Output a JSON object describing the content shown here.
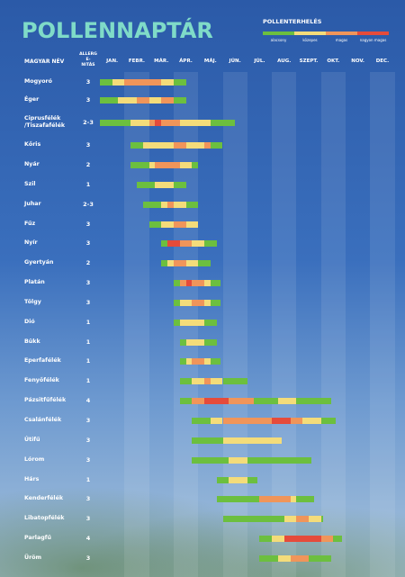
{
  "header": {
    "title": "POLLENNAPTÁR",
    "legend_title": "POLLENTERHELÉS",
    "levels": [
      {
        "label": "alacsony",
        "color": "#6cbf3f"
      },
      {
        "label": "közepes",
        "color": "#f4dc7a"
      },
      {
        "label": "magas",
        "color": "#f0955a"
      },
      {
        "label": "nagyon magas",
        "color": "#e54b3b"
      }
    ]
  },
  "columns": {
    "name": "MAGYAR NÉV",
    "allergenicity": "ALLERGE-NITÁS",
    "months": [
      "JAN.",
      "FEBR.",
      "MÁR.",
      "ÁPR.",
      "MÁJ.",
      "JÚN.",
      "JÚL.",
      "AUG.",
      "SZEPT.",
      "OKT.",
      "NOV.",
      "DEC."
    ]
  },
  "rows": [
    {
      "name": "Mogyoró",
      "allergenicity": 3,
      "segments": [
        [
          0,
          0.5,
          0
        ],
        [
          0.5,
          1,
          1
        ],
        [
          1,
          2.5,
          2
        ],
        [
          2.5,
          3,
          1
        ],
        [
          3,
          3.5,
          0
        ]
      ]
    },
    {
      "name": "Éger",
      "allergenicity": 3,
      "segments": [
        [
          0,
          0.75,
          0
        ],
        [
          0.75,
          1.5,
          1
        ],
        [
          1.5,
          2,
          2
        ],
        [
          2,
          2.5,
          1
        ],
        [
          2.5,
          3,
          2
        ],
        [
          3,
          3.5,
          0
        ]
      ]
    },
    {
      "name": "Ciprusfélék /Tiszafafélék",
      "allergenicity": "2-3",
      "segments": [
        [
          0,
          1.25,
          0
        ],
        [
          1.25,
          2,
          1
        ],
        [
          2,
          2.25,
          2
        ],
        [
          2.25,
          2.5,
          3
        ],
        [
          2.5,
          3.25,
          2
        ],
        [
          3.25,
          4.5,
          1
        ],
        [
          4.5,
          5.5,
          0
        ]
      ]
    },
    {
      "name": "Kőris",
      "allergenicity": 3,
      "segments": [
        [
          1.25,
          1.75,
          0
        ],
        [
          1.75,
          3,
          1
        ],
        [
          3,
          3.5,
          2
        ],
        [
          3.5,
          4.25,
          1
        ],
        [
          4.25,
          4.5,
          2
        ],
        [
          4.5,
          5,
          0
        ]
      ]
    },
    {
      "name": "Nyár",
      "allergenicity": 2,
      "segments": [
        [
          1.25,
          2,
          0
        ],
        [
          2,
          2.25,
          1
        ],
        [
          2.25,
          3.25,
          2
        ],
        [
          3.25,
          3.75,
          1
        ],
        [
          3.75,
          4,
          0
        ]
      ]
    },
    {
      "name": "Szil",
      "allergenicity": 1,
      "segments": [
        [
          1.5,
          2.25,
          0
        ],
        [
          2.25,
          3,
          1
        ],
        [
          3,
          3.5,
          0
        ]
      ]
    },
    {
      "name": "Juhar",
      "allergenicity": "2-3",
      "segments": [
        [
          1.75,
          2.5,
          0
        ],
        [
          2.5,
          2.75,
          1
        ],
        [
          2.75,
          3,
          2
        ],
        [
          3,
          3.5,
          1
        ],
        [
          3.5,
          4,
          0
        ]
      ]
    },
    {
      "name": "Fűz",
      "allergenicity": 3,
      "segments": [
        [
          2,
          2.5,
          0
        ],
        [
          2.5,
          3,
          1
        ],
        [
          3,
          3.5,
          2
        ],
        [
          3.5,
          4,
          1
        ]
      ]
    },
    {
      "name": "Nyír",
      "allergenicity": 3,
      "segments": [
        [
          2.5,
          2.75,
          0
        ],
        [
          2.75,
          3.25,
          3
        ],
        [
          3.25,
          3.75,
          2
        ],
        [
          3.75,
          4.25,
          1
        ],
        [
          4.25,
          4.75,
          0
        ]
      ]
    },
    {
      "name": "Gyertyán",
      "allergenicity": 2,
      "segments": [
        [
          2.5,
          2.75,
          0
        ],
        [
          2.75,
          3,
          1
        ],
        [
          3,
          3.5,
          2
        ],
        [
          3.5,
          4,
          1
        ],
        [
          4,
          4.5,
          0
        ]
      ]
    },
    {
      "name": "Platán",
      "allergenicity": 3,
      "segments": [
        [
          3,
          3.25,
          0
        ],
        [
          3.25,
          3.5,
          2
        ],
        [
          3.5,
          3.75,
          3
        ],
        [
          3.75,
          4.25,
          2
        ],
        [
          4.25,
          4.5,
          1
        ],
        [
          4.5,
          4.9,
          0
        ]
      ]
    },
    {
      "name": "Tölgy",
      "allergenicity": 3,
      "segments": [
        [
          3,
          3.25,
          0
        ],
        [
          3.25,
          3.75,
          1
        ],
        [
          3.75,
          4.25,
          2
        ],
        [
          4.25,
          4.5,
          1
        ],
        [
          4.5,
          4.9,
          0
        ]
      ]
    },
    {
      "name": "Dió",
      "allergenicity": 1,
      "segments": [
        [
          3,
          3.25,
          0
        ],
        [
          3.25,
          4.25,
          1
        ],
        [
          4.25,
          4.75,
          0
        ]
      ]
    },
    {
      "name": "Bükk",
      "allergenicity": 1,
      "segments": [
        [
          3.25,
          3.5,
          0
        ],
        [
          3.5,
          4.25,
          1
        ],
        [
          4.25,
          4.75,
          0
        ]
      ]
    },
    {
      "name": "Eperfafélék",
      "allergenicity": 1,
      "segments": [
        [
          3.25,
          3.5,
          0
        ],
        [
          3.5,
          3.75,
          1
        ],
        [
          3.75,
          4.25,
          2
        ],
        [
          4.25,
          4.5,
          1
        ],
        [
          4.5,
          4.9,
          0
        ]
      ]
    },
    {
      "name": "Fenyőfélék",
      "allergenicity": 1,
      "segments": [
        [
          3.25,
          3.75,
          0
        ],
        [
          3.75,
          4.25,
          1
        ],
        [
          4.25,
          4.5,
          2
        ],
        [
          4.5,
          5,
          1
        ],
        [
          5,
          6,
          0
        ]
      ]
    },
    {
      "name": "Pázsitfűfélék",
      "allergenicity": 4,
      "segments": [
        [
          3.25,
          3.75,
          0
        ],
        [
          3.75,
          4.25,
          2
        ],
        [
          4.25,
          5.25,
          3
        ],
        [
          5.25,
          6.25,
          2
        ],
        [
          6.25,
          7.25,
          0
        ],
        [
          7.25,
          8,
          1
        ],
        [
          8,
          9.4,
          0
        ]
      ]
    },
    {
      "name": "Csalánfélék",
      "allergenicity": 3,
      "segments": [
        [
          3.75,
          4.5,
          0
        ],
        [
          4.5,
          5,
          1
        ],
        [
          5,
          7,
          2
        ],
        [
          7,
          7.75,
          3
        ],
        [
          7.75,
          8.25,
          2
        ],
        [
          8.25,
          9,
          1
        ],
        [
          9,
          9.6,
          0
        ]
      ]
    },
    {
      "name": "Útifű",
      "allergenicity": 3,
      "segments": [
        [
          3.75,
          5,
          0
        ],
        [
          5,
          7.4,
          1
        ]
      ]
    },
    {
      "name": "Lórom",
      "allergenicity": 3,
      "segments": [
        [
          3.75,
          5.25,
          0
        ],
        [
          5.25,
          6,
          1
        ],
        [
          6,
          8.6,
          0
        ]
      ]
    },
    {
      "name": "Hárs",
      "allergenicity": 1,
      "segments": [
        [
          4.75,
          5.25,
          0
        ],
        [
          5.25,
          6,
          1
        ],
        [
          6,
          6.4,
          0
        ]
      ]
    },
    {
      "name": "Kenderfélék",
      "allergenicity": 3,
      "segments": [
        [
          4.75,
          6.5,
          0
        ],
        [
          6.5,
          7.75,
          2
        ],
        [
          7.75,
          8,
          1
        ],
        [
          8,
          8.7,
          0
        ]
      ]
    },
    {
      "name": "Libatopfélék",
      "allergenicity": 3,
      "segments": [
        [
          5,
          7.5,
          0
        ],
        [
          7.5,
          8,
          1
        ],
        [
          8,
          8.5,
          2
        ],
        [
          8.5,
          9,
          1
        ],
        [
          9,
          9.1,
          0
        ]
      ]
    },
    {
      "name": "Parlagfű",
      "allergenicity": 4,
      "segments": [
        [
          6.5,
          7,
          0
        ],
        [
          7,
          7.5,
          1
        ],
        [
          7.5,
          9,
          3
        ],
        [
          9,
          9.5,
          2
        ],
        [
          9.5,
          9.85,
          0
        ]
      ]
    },
    {
      "name": "Üröm",
      "allergenicity": 3,
      "segments": [
        [
          6.5,
          7.25,
          0
        ],
        [
          7.25,
          7.75,
          1
        ],
        [
          7.75,
          8.5,
          2
        ],
        [
          8.5,
          9.4,
          0
        ]
      ]
    }
  ]
}
